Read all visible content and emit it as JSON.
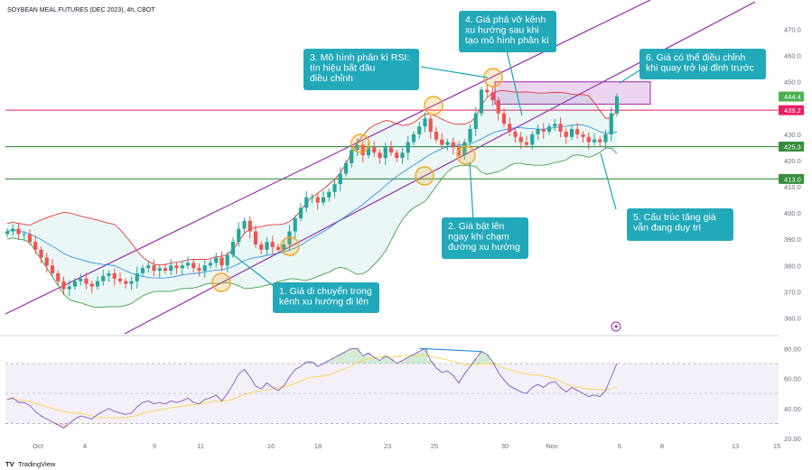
{
  "chart_data": {
    "type": "candlestick",
    "title": "SOYBEAN MEAL FUTURES (DEC 2023), 4h, CBOT",
    "source": "TradingView",
    "y_axis": {
      "min": 355,
      "max": 475,
      "ticks": [
        360,
        370,
        380,
        390,
        400,
        410,
        420,
        430,
        440,
        450,
        460,
        470
      ]
    },
    "x_axis": {
      "ticks": [
        "Oct",
        "4",
        "9",
        "11",
        "16",
        "18",
        "23",
        "25",
        "30",
        "Nov",
        "6",
        "8",
        "13",
        "15"
      ]
    },
    "price_labels": [
      {
        "value": 444.4,
        "text": "444.4",
        "color": "#4caf50"
      },
      {
        "value": 439.2,
        "text": "439.2",
        "color": "#e91e63"
      },
      {
        "value": 425.3,
        "text": "425.3",
        "color": "#388e3c"
      },
      {
        "value": 413.0,
        "text": "413.0",
        "color": "#388e3c"
      }
    ],
    "levels": [
      {
        "value": 439.2,
        "color": "#e91e63"
      },
      {
        "value": 425.3,
        "color": "#388e3c"
      },
      {
        "value": 413.0,
        "color": "#388e3c"
      }
    ],
    "closes": [
      393,
      394,
      392,
      392,
      389,
      386,
      383,
      380,
      377,
      374,
      371,
      372,
      374,
      375,
      373,
      372,
      374,
      376,
      377,
      375,
      374,
      373,
      374,
      377,
      379,
      380,
      378,
      379,
      378,
      380,
      379,
      380,
      381,
      379,
      378,
      380,
      381,
      383,
      380,
      384,
      389,
      394,
      397,
      393,
      388,
      386,
      389,
      387,
      386,
      388,
      393,
      398,
      402,
      406,
      406,
      404,
      406,
      408,
      411,
      415,
      419,
      424,
      426,
      422,
      425,
      423,
      421,
      425,
      423,
      421,
      423,
      427,
      430,
      433,
      436,
      431,
      428,
      426,
      427,
      425,
      422,
      427,
      432,
      438,
      447,
      446,
      443,
      438,
      434,
      431,
      429,
      427,
      426,
      430,
      432,
      431,
      433,
      434,
      431,
      429,
      432,
      430,
      429,
      427,
      428,
      427,
      430,
      438,
      444.4
    ],
    "rsi": {
      "range": [
        20,
        85
      ],
      "ticks": [
        20,
        40,
        60,
        80
      ],
      "band": [
        30,
        70
      ],
      "values": [
        46,
        47,
        44,
        44,
        42,
        38,
        35,
        33,
        31,
        29,
        27,
        30,
        33,
        35,
        34,
        33,
        36,
        38,
        40,
        38,
        37,
        36,
        37,
        41,
        44,
        45,
        43,
        44,
        43,
        45,
        44,
        45,
        47,
        44,
        43,
        46,
        47,
        49,
        45,
        50,
        56,
        63,
        66,
        61,
        55,
        53,
        57,
        54,
        52,
        55,
        61,
        66,
        68,
        71,
        71,
        68,
        70,
        72,
        74,
        76,
        78,
        80,
        80,
        75,
        77,
        74,
        72,
        75,
        73,
        70,
        72,
        74,
        76,
        78,
        80,
        72,
        67,
        64,
        65,
        62,
        57,
        63,
        68,
        73,
        78,
        76,
        71,
        64,
        59,
        55,
        53,
        51,
        50,
        54,
        56,
        54,
        57,
        58,
        54,
        51,
        54,
        52,
        50,
        48,
        49,
        48,
        52,
        61,
        70
      ]
    },
    "annotations": [
      {
        "id": 1,
        "text": [
          "1. Giá di chuyển trong",
          "kênh xu hướng đi lên"
        ]
      },
      {
        "id": 2,
        "text": [
          "2. Giá bật lên",
          "ngay khi chạm",
          "đường xu hướng"
        ]
      },
      {
        "id": 3,
        "text": [
          "3. Mô hình phân kì RSI:",
          "tín hiệu bắt đầu",
          "điều chỉnh"
        ]
      },
      {
        "id": 4,
        "text": [
          "4. Giá phá vỡ kênh",
          "xu hướng sau khi",
          "tạo mô hình phân kì"
        ]
      },
      {
        "id": 5,
        "text": [
          "5. Cấu trúc tăng giá",
          "vẫn đang duy trì"
        ]
      },
      {
        "id": 6,
        "text": [
          "6. Giá có thể điều chỉnh",
          "khi quay trở lại đỉnh trước"
        ]
      }
    ],
    "colors": {
      "up": "#26a69a",
      "down": "#ef5350",
      "channel": "#9c27b0",
      "annotation_bg": "#22a9b9",
      "circle": "#f5a623",
      "bb_upper": "#e53935",
      "bb_lower": "#43a047",
      "bb_mid": "#1e88e5",
      "rsi": "#7e57c2",
      "rsi_ma": "#f9d65c"
    }
  },
  "brand": {
    "logo_text": "TV",
    "name": "TradingView"
  }
}
